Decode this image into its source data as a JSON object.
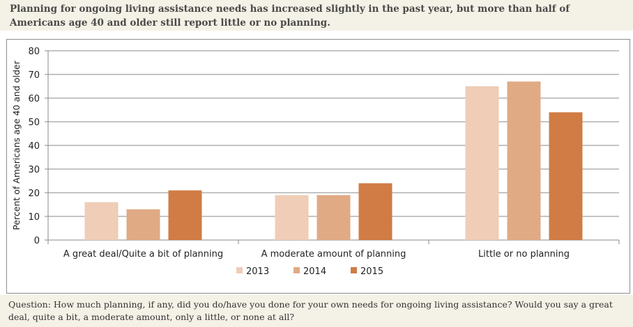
{
  "header": {
    "text": "Planning for ongoing living assistance needs has increased slightly in the past year, but more than half of Americans age 40 and older still report little or no planning."
  },
  "footer": {
    "question": "Question: How much planning, if any, did you do/have you done for your own needs for ongoing living assistance? Would you say a great deal, quite a bit, a moderate amount, only a little, or none at all?"
  },
  "chart_data": {
    "type": "bar",
    "ylabel": "Percent of Americans age 40 and older",
    "xlabel": "",
    "ylim": [
      0,
      80
    ],
    "yticks": [
      0,
      10,
      20,
      30,
      40,
      50,
      60,
      70,
      80
    ],
    "grid": true,
    "legend_position": "bottom",
    "categories": [
      "A great deal/Quite a bit of planning",
      "A moderate amount of planning",
      "Little or no planning"
    ],
    "series": [
      {
        "name": "2013",
        "color": "#efcdb6",
        "values": [
          16,
          19,
          65
        ]
      },
      {
        "name": "2014",
        "color": "#e0aa85",
        "values": [
          13,
          19,
          67
        ]
      },
      {
        "name": "2015",
        "color": "#d07c44",
        "values": [
          21,
          24,
          54
        ]
      }
    ]
  }
}
